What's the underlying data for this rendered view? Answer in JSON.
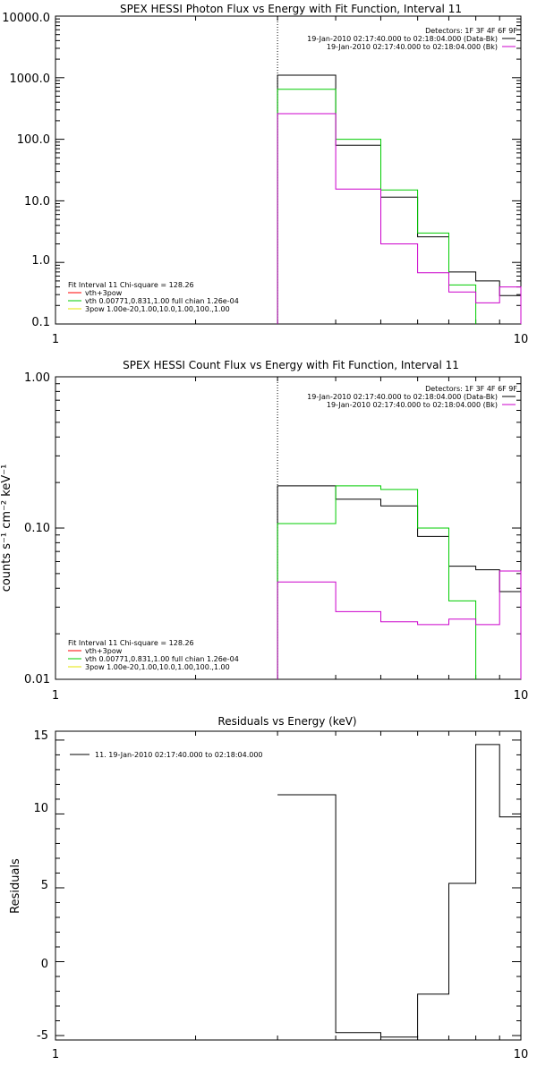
{
  "chart_data": [
    {
      "type": "line",
      "title": "SPEX HESSI Photon Flux vs Energy with Fit Function, Interval 11",
      "xlabel": "",
      "ylabel": "",
      "x_scale": "log",
      "y_scale": "log",
      "xlim": [
        1,
        10
      ],
      "ylim": [
        0.1,
        10000
      ],
      "x_ticks": [
        "1",
        "10"
      ],
      "y_ticks": [
        "0.1",
        "1.0",
        "10.0",
        "100.0",
        "1000.0",
        "10000.0"
      ],
      "vline_x": 3,
      "header": [
        "Detectors: 1F 3F 4F 6F 9F",
        "19-Jan-2010 02:17:40.000 to 02:18:04.000 (Data-Bk)",
        "19-Jan-2010 02:17:40.000 to 02:18:04.000 (Bk)"
      ],
      "legend": [
        {
          "text": "Fit Interval 11    Chi-square = 128.26",
          "color": ""
        },
        {
          "text": "vth+3pow",
          "color": "#ff0000"
        },
        {
          "text": "vth 0.00771,0.831,1.00  full chian 1.26e-04",
          "color": "#00cc00"
        },
        {
          "text": "3pow 1.00e-20,1.00,10.0,1.00,100.,1.00",
          "color": "#e6e600"
        }
      ],
      "series": [
        {
          "name": "Data-Bk",
          "color": "#000000",
          "edges": [
            3,
            4,
            5,
            6,
            7,
            8,
            9,
            10
          ],
          "values": [
            1100,
            80,
            11.5,
            2.6,
            0.7,
            0.5,
            0.29
          ]
        },
        {
          "name": "",
          "color": "#00cc00",
          "edges": [
            3,
            4,
            5,
            6,
            7,
            8
          ],
          "values": [
            650,
            100,
            15,
            3,
            0.43
          ]
        },
        {
          "name": "Bk",
          "color": "#cc00cc",
          "edges": [
            3,
            4,
            5,
            6,
            7,
            8,
            9,
            10
          ],
          "values": [
            260,
            15.5,
            2.0,
            0.68,
            0.33,
            0.22,
            0.4
          ]
        }
      ]
    },
    {
      "type": "line",
      "title": "SPEX HESSI Count Flux vs Energy with Fit Function, Interval 11",
      "xlabel": "",
      "ylabel": "counts s⁻¹ cm⁻² keV⁻¹",
      "x_scale": "log",
      "y_scale": "log",
      "xlim": [
        1,
        10
      ],
      "ylim": [
        0.01,
        1.0
      ],
      "x_ticks": [
        "1",
        "10"
      ],
      "y_ticks": [
        "0.01",
        "0.10",
        "1.00"
      ],
      "vline_x": 3,
      "header": [
        "Detectors: 1F 3F 4F 6F 9F",
        "19-Jan-2010 02:17:40.000 to 02:18:04.000 (Data-Bk)",
        "19-Jan-2010 02:17:40.000 to 02:18:04.000 (Bk)"
      ],
      "legend": [
        {
          "text": "Fit Interval 11    Chi-square = 128.26",
          "color": ""
        },
        {
          "text": "vth+3pow",
          "color": "#ff0000"
        },
        {
          "text": "vth 0.00771,0.831,1.00  full chian 1.26e-04",
          "color": "#00cc00"
        },
        {
          "text": "3pow 1.00e-20,1.00,10.0,1.00,100.,1.00",
          "color": "#e6e600"
        }
      ],
      "series": [
        {
          "name": "Data-Bk",
          "color": "#000000",
          "edges": [
            3,
            4,
            5,
            6,
            7,
            8,
            9,
            10
          ],
          "values": [
            0.19,
            0.155,
            0.14,
            0.088,
            0.056,
            0.053,
            0.038
          ]
        },
        {
          "name": "",
          "color": "#00cc00",
          "edges": [
            3,
            4,
            5,
            6,
            7,
            8
          ],
          "values": [
            0.107,
            0.19,
            0.18,
            0.1,
            0.033
          ]
        },
        {
          "name": "Bk",
          "color": "#cc00cc",
          "edges": [
            3,
            4,
            5,
            6,
            7,
            8,
            9,
            10
          ],
          "values": [
            0.044,
            0.028,
            0.024,
            0.023,
            0.025,
            0.023,
            0.052
          ]
        }
      ]
    },
    {
      "type": "line",
      "title": "Residuals vs Energy (keV)",
      "xlabel": "",
      "ylabel": "Residuals",
      "x_scale": "log",
      "y_scale": "linear",
      "xlim": [
        1,
        10
      ],
      "ylim": [
        -5.3,
        15.6
      ],
      "x_ticks": [
        "1",
        "10"
      ],
      "y_ticks": [
        "-5",
        "0",
        "5",
        "10",
        "15"
      ],
      "legend": [
        {
          "text": "11. 19-Jan-2010 02:17:40.000 to 02:18:04.000",
          "color": "#000000"
        }
      ],
      "series": [
        {
          "name": "11. 19-Jan-2010 02:17:40.000 to 02:18:04.000",
          "color": "#000000",
          "edges": [
            3,
            4,
            5,
            6,
            7,
            8,
            9,
            10
          ],
          "values": [
            11.3,
            -4.8,
            -5.1,
            -2.2,
            5.3,
            14.7,
            9.8
          ]
        }
      ]
    }
  ]
}
